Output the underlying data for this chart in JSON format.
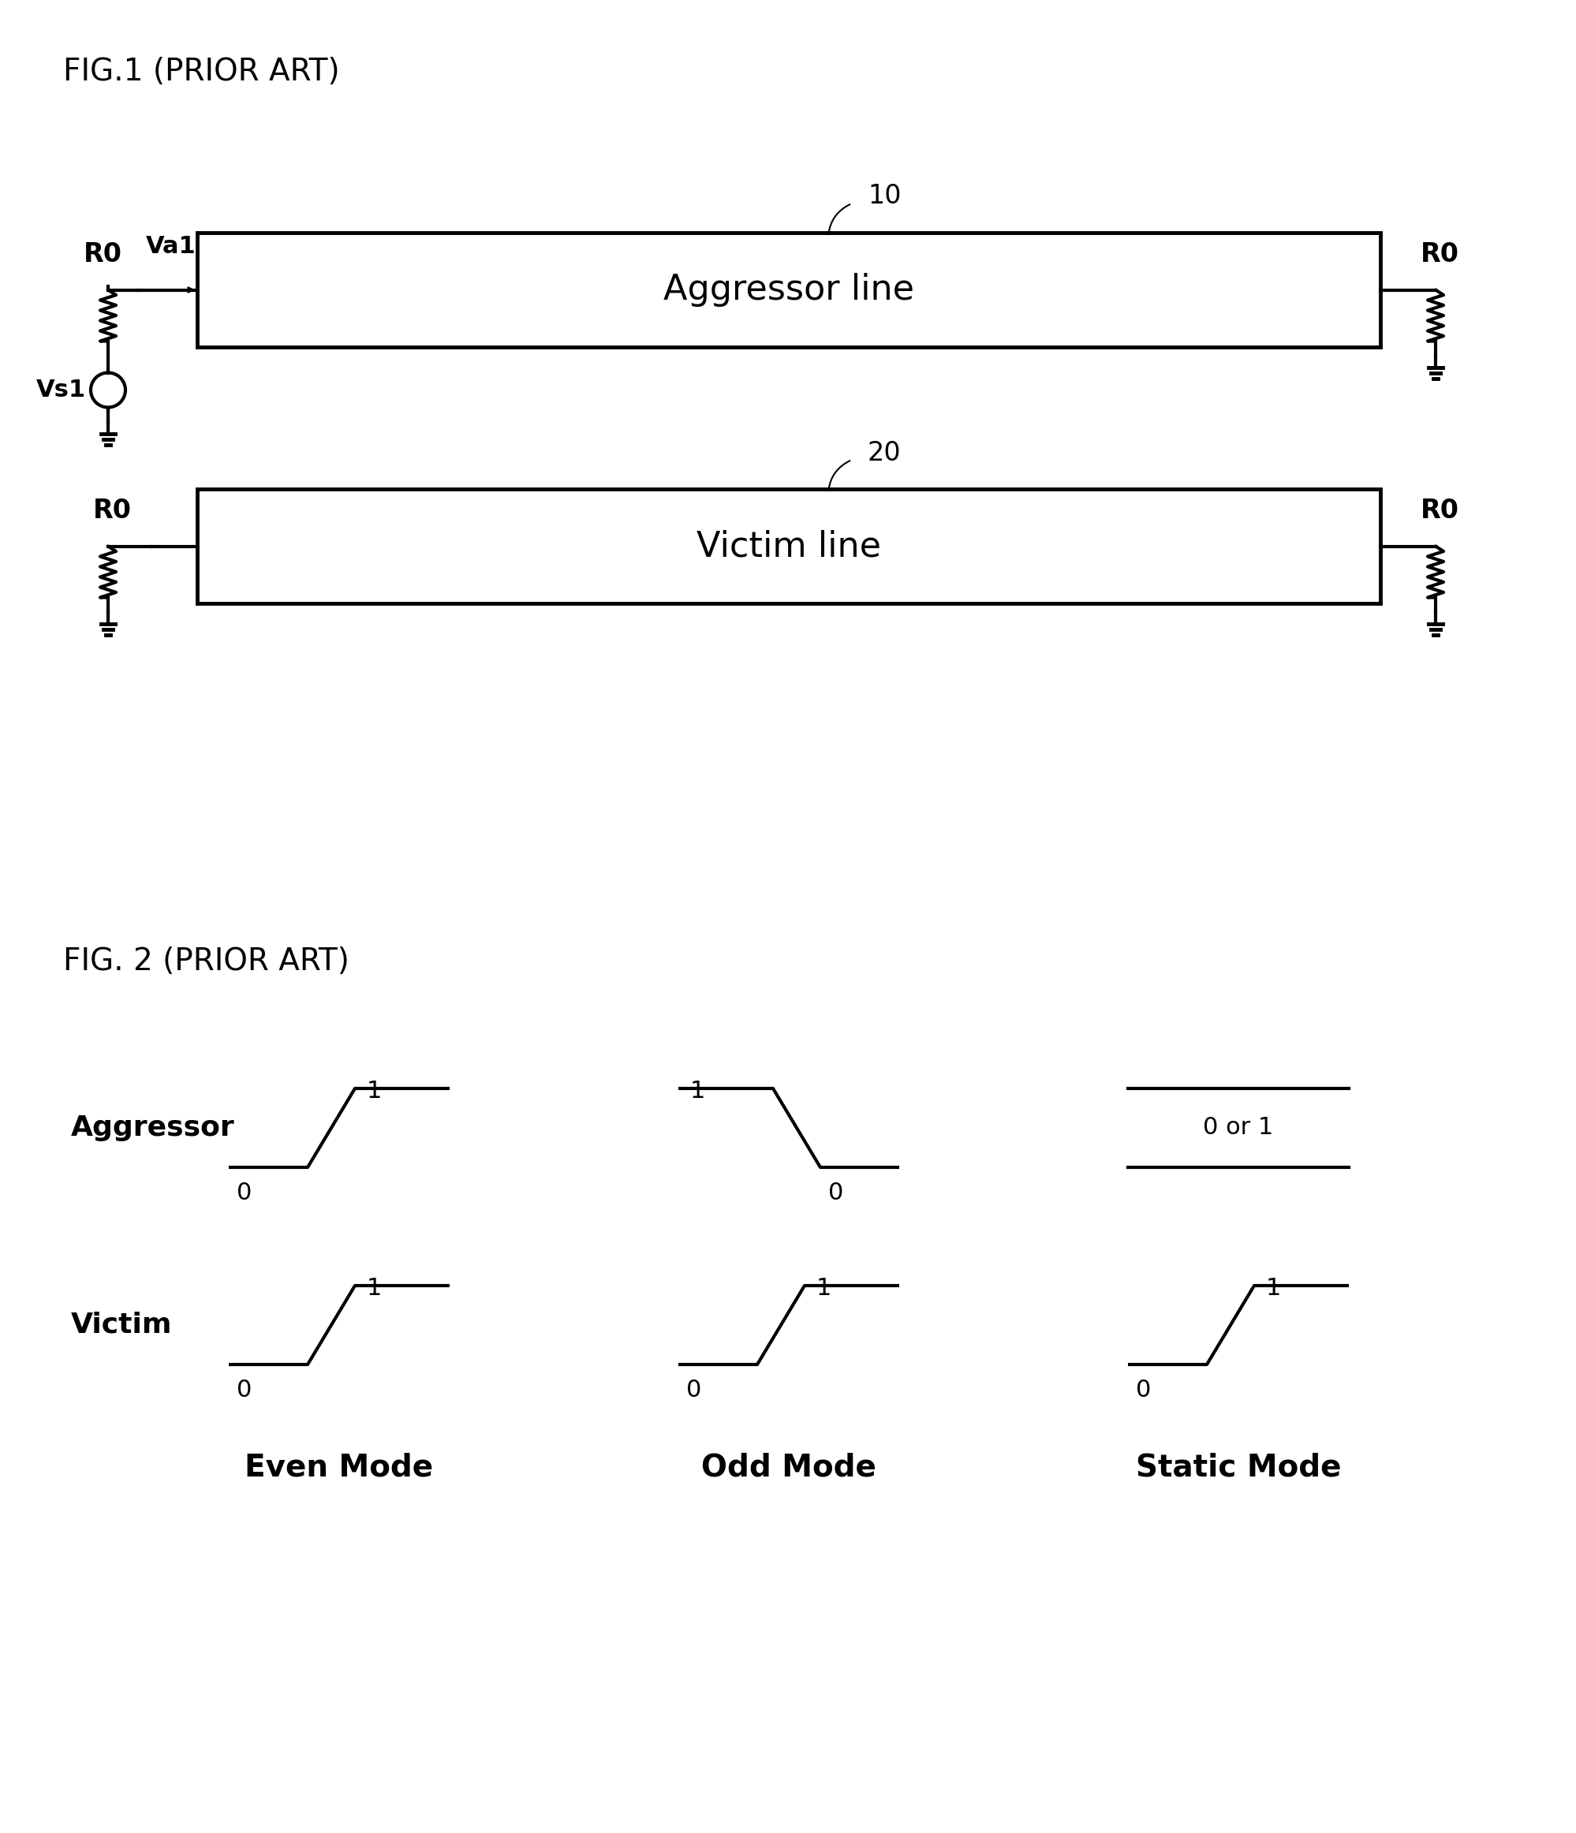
{
  "fig1_title": "FIG.1 (PRIOR ART)",
  "fig2_title": "FIG. 2 (PRIOR ART)",
  "aggressor_label": "Aggressor line",
  "victim_label": "Victim line",
  "label_10": "10",
  "label_20": "20",
  "bg_color": "#ffffff",
  "line_color": "#000000",
  "mode_labels": [
    "Even Mode",
    "Odd Mode",
    "Static Mode"
  ],
  "row_labels": [
    "Aggressor",
    "Victim"
  ]
}
